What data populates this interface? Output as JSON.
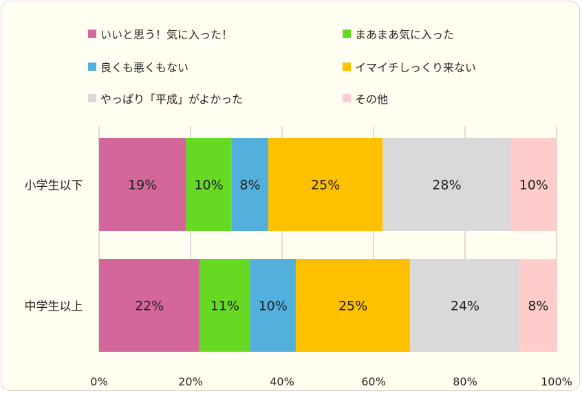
{
  "chart_data": {
    "type": "bar",
    "orientation": "horizontal",
    "stacked": true,
    "percent": true,
    "categories": [
      "小学生以下",
      "中学生以上"
    ],
    "series": [
      {
        "name": "いいと思う！気に入った！",
        "color": "#d4679a",
        "values": [
          19,
          22
        ]
      },
      {
        "name": "まあまあ気に入った",
        "color": "#66d923",
        "values": [
          10,
          11
        ]
      },
      {
        "name": "良くも悪くもない",
        "color": "#53b0dc",
        "values": [
          8,
          10
        ]
      },
      {
        "name": "イマイチしっくり来ない",
        "color": "#ffc000",
        "values": [
          25,
          25
        ]
      },
      {
        "name": "やっぱり「平成」がよかった",
        "color": "#d9d9d9",
        "values": [
          28,
          24
        ]
      },
      {
        "name": "その他",
        "color": "#ffcccc",
        "values": [
          10,
          8
        ]
      }
    ],
    "data_labels": [
      [
        "19%",
        "10%",
        "8%",
        "25%",
        "28%",
        "10%"
      ],
      [
        "22%",
        "11%",
        "10%",
        "25%",
        "24%",
        "8%"
      ]
    ],
    "x_ticks": [
      "0%",
      "20%",
      "40%",
      "60%",
      "80%",
      "100%"
    ],
    "xlim": [
      0,
      100
    ],
    "grid": true,
    "legend_position": "top",
    "background_color": "#fffef0"
  }
}
